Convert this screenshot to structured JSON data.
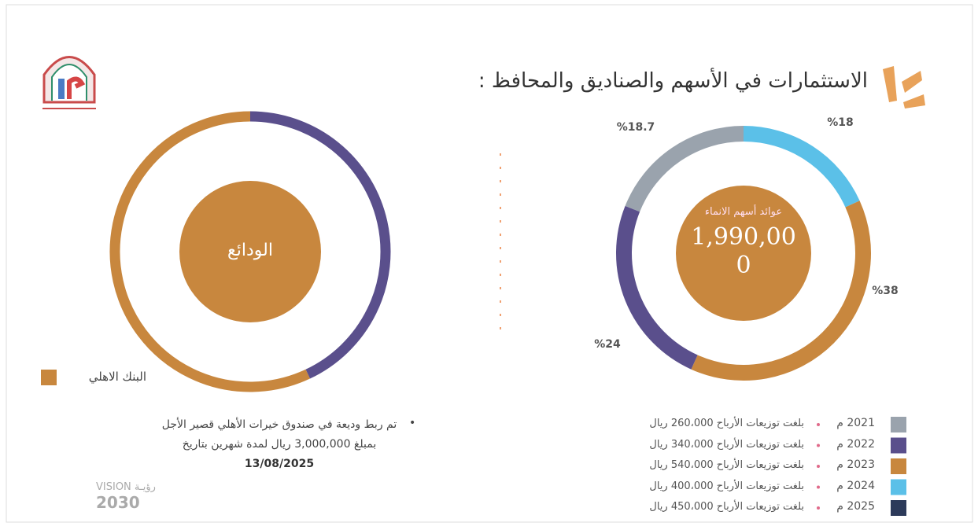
{
  "title": "الاستثمارات في الأسهم والصناديق والمحافظ :",
  "chart_data": [
    {
      "type": "pie",
      "center_label": "الودائع",
      "categories": [
        null,
        "البنك الاهلي"
      ],
      "values": [
        43,
        57
      ],
      "colors": [
        "#5a4f8c",
        "#c8873e"
      ]
    },
    {
      "type": "pie",
      "center_label": "عوائد أسهم الانماء",
      "center_value": "1,990,000",
      "values": [
        18,
        38,
        24,
        18.7
      ],
      "value_labels": [
        "%18",
        "%38",
        "%24",
        "%18.7"
      ],
      "colors": [
        "#5bc0e8",
        "#c8873e",
        "#5a4f8c",
        "#9aa3ad"
      ]
    }
  ],
  "dividends": [
    {
      "year": "2021 م",
      "text": "بلغت توزيعات الأرباح 260،000 ريال",
      "color": "#9aa3ad"
    },
    {
      "year": "2022 م",
      "text": "بلغت توزيعات الأرباح 340،000 ريال",
      "color": "#5a4f8c"
    },
    {
      "year": "2023 م",
      "text": "بلغت توزيعات الأرباح 540،000 ريال",
      "color": "#c8873e"
    },
    {
      "year": "2024 م",
      "text": "بلغت توزيعات الأرباح 400،000 ريال",
      "color": "#5bc0e8"
    },
    {
      "year": "2025 م",
      "text": "بلغت توزيعات الأرباح 450،000 ريال",
      "color": "#2c3a5a"
    }
  ],
  "deposit_note": {
    "text": "تم ربط وديعة في صندوق خيرات الأهلي قصير الأجل بمبلغ 3,000,000 ريال لمدة شهرين بتاريخ",
    "date": "13/08/2025"
  },
  "vision": {
    "latin": "VISION",
    "arabic": "رؤيـة",
    "year": "2030"
  }
}
